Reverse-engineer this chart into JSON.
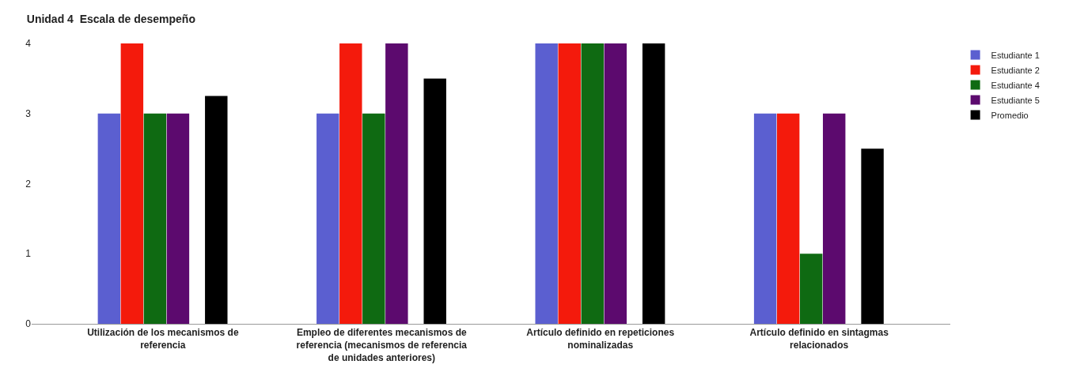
{
  "chart_data": {
    "type": "bar",
    "title": "Unidad 4  Escala de desempeño",
    "categories": [
      "Utilización de los mecanismos de referencia",
      "Empleo de diferentes mecanismos de referencia (mecanismos de referencia de unidades anteriores)",
      "Artículo definido en repeticiones nominalizadas",
      "Artículo definido en sintagmas relacionados"
    ],
    "series": [
      {
        "name": "Estudiante 1",
        "color": "#5b5fd0",
        "values": [
          3,
          3,
          4,
          3
        ]
      },
      {
        "name": "Estudiante 2",
        "color": "#f41a0c",
        "values": [
          4,
          4,
          4,
          3
        ]
      },
      {
        "name": "Estudiante 4",
        "color": "#0f6a12",
        "values": [
          3,
          3,
          4,
          1
        ]
      },
      {
        "name": "Estudiante 5",
        "color": "#5c0a6e",
        "values": [
          3,
          4,
          4,
          3
        ]
      },
      {
        "name": "Promedio",
        "color": "#000000",
        "values": [
          3.25,
          3.5,
          4,
          2.5
        ]
      }
    ],
    "ylim": [
      0,
      4
    ],
    "yticks": [
      0,
      1,
      2,
      3,
      4
    ],
    "legend": "top right"
  }
}
